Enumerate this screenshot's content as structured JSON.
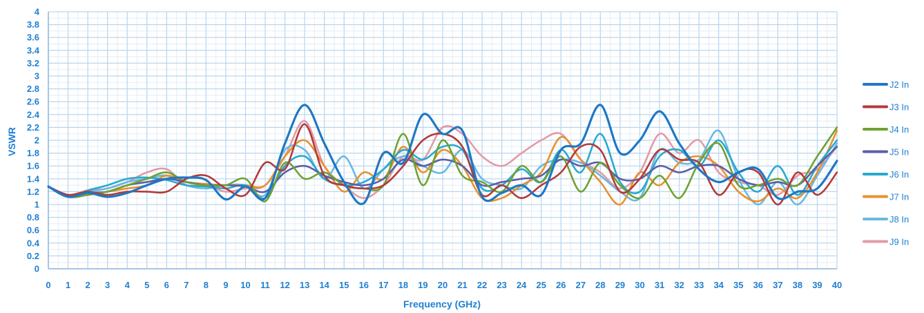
{
  "chart_data": {
    "type": "line",
    "title": "",
    "xlabel": "Frequency (GHz)",
    "ylabel": "VSWR",
    "xlim": [
      0,
      40
    ],
    "ylim": [
      0,
      4
    ],
    "x_ticks": [
      "0",
      "1",
      "2",
      "3",
      "4",
      "5",
      "6",
      "7",
      "8",
      "9",
      "10",
      "11",
      "12",
      "13",
      "14",
      "15",
      "16",
      "17",
      "18",
      "19",
      "20",
      "21",
      "22",
      "23",
      "24",
      "25",
      "26",
      "27",
      "28",
      "29",
      "30",
      "31",
      "32",
      "33",
      "34",
      "35",
      "36",
      "37",
      "38",
      "39",
      "40"
    ],
    "y_ticks": [
      "0",
      "0.2",
      "0.4",
      "0.6",
      "0.8",
      "1",
      "1.2",
      "1.4",
      "1.6",
      "1.8",
      "2",
      "2.2",
      "2.4",
      "2.6",
      "2.8",
      "3",
      "3.2",
      "3.4",
      "3.6",
      "3.8",
      "4"
    ],
    "grid": true,
    "legend_position": "right",
    "x": [
      0,
      1,
      2,
      3,
      4,
      5,
      6,
      7,
      8,
      9,
      10,
      11,
      12,
      13,
      14,
      15,
      16,
      17,
      18,
      19,
      20,
      21,
      22,
      23,
      24,
      25,
      26,
      27,
      28,
      29,
      30,
      31,
      32,
      33,
      34,
      35,
      36,
      37,
      38,
      39,
      40
    ],
    "series": [
      {
        "name": "J2 In",
        "color": "#1f77c4",
        "width": 3.2,
        "values": [
          1.28,
          1.12,
          1.18,
          1.12,
          1.18,
          1.3,
          1.4,
          1.42,
          1.38,
          1.08,
          1.28,
          1.1,
          1.95,
          2.55,
          1.95,
          1.35,
          1.02,
          1.8,
          1.65,
          2.4,
          2.1,
          2.15,
          1.12,
          1.18,
          1.3,
          1.15,
          1.85,
          1.95,
          2.55,
          1.8,
          2.0,
          2.45,
          1.95,
          1.55,
          1.35,
          1.5,
          1.55,
          1.1,
          1.2,
          1.25,
          1.68
        ]
      },
      {
        "name": "J3 In",
        "color": "#b33a3a",
        "width": 2.6,
        "values": [
          1.28,
          1.15,
          1.2,
          1.15,
          1.2,
          1.2,
          1.2,
          1.4,
          1.45,
          1.25,
          1.15,
          1.65,
          1.55,
          2.25,
          1.45,
          1.3,
          1.25,
          1.3,
          1.6,
          2.0,
          2.1,
          1.9,
          1.15,
          1.3,
          1.1,
          1.3,
          1.5,
          1.9,
          1.85,
          1.2,
          1.4,
          1.85,
          1.7,
          1.65,
          1.15,
          1.5,
          1.5,
          1.0,
          1.5,
          1.15,
          1.5
        ]
      },
      {
        "name": "J4 In",
        "color": "#6ea232",
        "width": 2.6,
        "values": [
          1.28,
          1.12,
          1.15,
          1.2,
          1.3,
          1.4,
          1.5,
          1.35,
          1.3,
          1.3,
          1.4,
          1.05,
          1.65,
          1.4,
          1.5,
          1.3,
          1.25,
          1.3,
          2.1,
          1.3,
          2.0,
          1.45,
          1.35,
          1.2,
          1.6,
          1.35,
          1.75,
          1.2,
          1.65,
          1.3,
          1.1,
          1.45,
          1.1,
          1.65,
          1.95,
          1.3,
          1.3,
          1.4,
          1.3,
          1.75,
          2.2
        ]
      },
      {
        "name": "J5 In",
        "color": "#5b5ea8",
        "width": 2.6,
        "values": [
          1.28,
          1.15,
          1.18,
          1.2,
          1.3,
          1.35,
          1.4,
          1.35,
          1.3,
          1.3,
          1.28,
          1.2,
          1.5,
          1.6,
          1.45,
          1.35,
          1.3,
          1.4,
          1.7,
          1.6,
          1.7,
          1.6,
          1.3,
          1.35,
          1.4,
          1.45,
          1.7,
          1.6,
          1.65,
          1.4,
          1.4,
          1.6,
          1.5,
          1.6,
          1.6,
          1.4,
          1.3,
          1.35,
          1.3,
          1.6,
          1.9
        ]
      },
      {
        "name": "J6 In",
        "color": "#2aa9cf",
        "width": 2.6,
        "values": [
          1.28,
          1.12,
          1.22,
          1.3,
          1.4,
          1.42,
          1.38,
          1.3,
          1.28,
          1.25,
          1.3,
          1.1,
          1.6,
          1.75,
          1.4,
          1.3,
          1.35,
          1.55,
          1.85,
          1.7,
          1.9,
          1.85,
          1.25,
          1.3,
          1.55,
          1.35,
          1.85,
          1.5,
          2.1,
          1.35,
          1.2,
          1.75,
          1.85,
          1.6,
          2.0,
          1.5,
          1.2,
          1.6,
          1.15,
          1.6,
          2.0
        ]
      },
      {
        "name": "J7 In",
        "color": "#e8912b",
        "width": 2.6,
        "values": [
          1.28,
          1.12,
          1.15,
          1.2,
          1.25,
          1.3,
          1.45,
          1.35,
          1.32,
          1.3,
          1.3,
          1.3,
          1.75,
          2.0,
          1.6,
          1.2,
          1.5,
          1.4,
          1.9,
          1.5,
          1.85,
          1.6,
          1.1,
          1.1,
          1.3,
          1.5,
          2.05,
          1.7,
          1.35,
          1.0,
          1.5,
          1.3,
          1.65,
          1.75,
          1.6,
          1.2,
          1.05,
          1.25,
          1.1,
          1.5,
          2.15
        ]
      },
      {
        "name": "J8 In",
        "color": "#6ab8e2",
        "width": 2.6,
        "values": [
          1.28,
          1.15,
          1.2,
          1.25,
          1.35,
          1.4,
          1.45,
          1.3,
          1.25,
          1.3,
          1.3,
          1.15,
          1.85,
          1.85,
          1.4,
          1.75,
          1.25,
          1.55,
          1.75,
          1.6,
          1.5,
          1.85,
          1.4,
          1.3,
          1.25,
          1.6,
          1.7,
          1.65,
          1.45,
          1.2,
          1.1,
          1.85,
          1.65,
          1.7,
          2.15,
          1.4,
          1.0,
          1.35,
          1.0,
          1.45,
          1.95
        ]
      },
      {
        "name": "J9 In",
        "color": "#e39aa6",
        "width": 2.6,
        "values": [
          1.28,
          1.15,
          1.22,
          1.25,
          1.35,
          1.5,
          1.55,
          1.3,
          1.3,
          1.2,
          1.25,
          1.3,
          1.75,
          2.3,
          1.6,
          1.3,
          1.1,
          1.3,
          1.75,
          1.7,
          2.2,
          2.1,
          1.75,
          1.6,
          1.8,
          2.0,
          2.1,
          1.7,
          1.5,
          1.25,
          1.5,
          2.1,
          1.8,
          2.0,
          1.5,
          1.35,
          1.3,
          1.15,
          1.45,
          1.55,
          1.9
        ]
      }
    ]
  }
}
